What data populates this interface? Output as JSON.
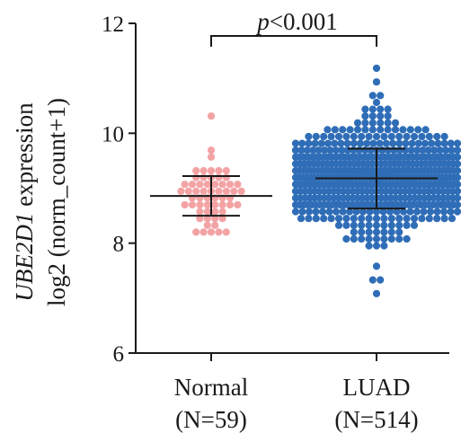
{
  "chart_data": {
    "type": "scatter",
    "subtype": "beeswarm-dot-plot",
    "ylabel_line1_italic": "UBE2D1",
    "ylabel_line1_rest": " expression",
    "ylabel_line2": "log2 (norm_count+1)",
    "ylim": [
      6,
      12
    ],
    "yticks": [
      "6",
      "8",
      "10",
      "12"
    ],
    "grid": false,
    "legend": "none",
    "significance": {
      "p_italic": "p",
      "p_rest": "<0.001"
    },
    "groups": [
      {
        "category": "Normal",
        "n_label": "(N=59)",
        "n": 59,
        "color": "#f4a3a5",
        "mean": 8.86,
        "sd_low": 8.5,
        "sd_high": 9.22,
        "extremes": [
          10.29,
          9.72,
          8.15
        ],
        "range": [
          8.15,
          10.29
        ]
      },
      {
        "category": "LUAD",
        "n_label": "(N=514)",
        "n": 514,
        "color": "#2f6db7",
        "mean": 9.18,
        "sd_low": 8.63,
        "sd_high": 9.72,
        "extremes": [
          11.23,
          10.93,
          7.07
        ],
        "range": [
          7.07,
          11.23
        ]
      }
    ]
  }
}
